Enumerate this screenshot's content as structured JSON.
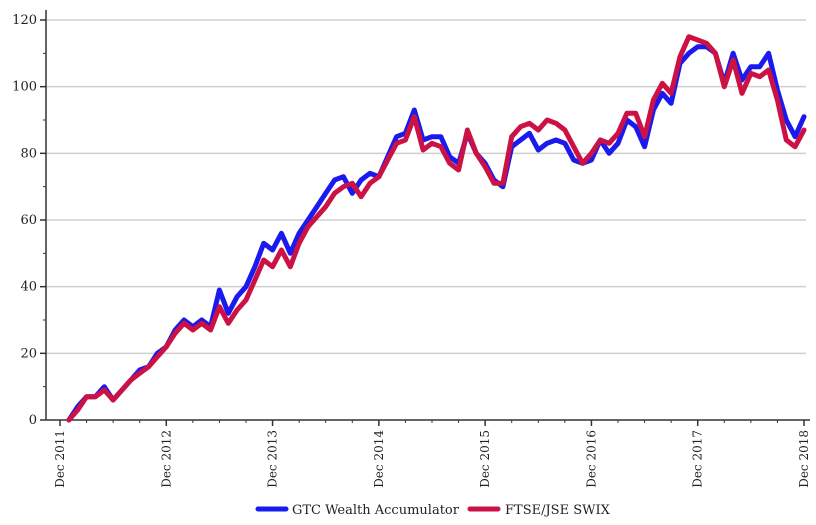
{
  "chart_data": {
    "type": "line",
    "title": "",
    "xlabel": "",
    "ylabel": "",
    "ylim": [
      0,
      120
    ],
    "xlim": [
      "2011-12",
      "2018-12"
    ],
    "y_ticks": [
      0,
      20,
      40,
      60,
      80,
      100,
      120
    ],
    "x_ticks": [
      "Dec 2011",
      "Dec 2012",
      "Dec 2013",
      "Dec 2014",
      "Dec 2015",
      "Dec 2016",
      "Dec 2017",
      "Dec 2018"
    ],
    "grid": "horizontal",
    "legend_position": "bottom-center",
    "x": [
      "2012-01",
      "2012-02",
      "2012-03",
      "2012-04",
      "2012-05",
      "2012-06",
      "2012-07",
      "2012-08",
      "2012-09",
      "2012-10",
      "2012-11",
      "2012-12",
      "2013-01",
      "2013-02",
      "2013-03",
      "2013-04",
      "2013-05",
      "2013-06",
      "2013-07",
      "2013-08",
      "2013-09",
      "2013-10",
      "2013-11",
      "2013-12",
      "2014-01",
      "2014-02",
      "2014-03",
      "2014-04",
      "2014-05",
      "2014-06",
      "2014-07",
      "2014-08",
      "2014-09",
      "2014-10",
      "2014-11",
      "2014-12",
      "2015-01",
      "2015-02",
      "2015-03",
      "2015-04",
      "2015-05",
      "2015-06",
      "2015-07",
      "2015-08",
      "2015-09",
      "2015-10",
      "2015-11",
      "2015-12",
      "2016-01",
      "2016-02",
      "2016-03",
      "2016-04",
      "2016-05",
      "2016-06",
      "2016-07",
      "2016-08",
      "2016-09",
      "2016-10",
      "2016-11",
      "2016-12",
      "2017-01",
      "2017-02",
      "2017-03",
      "2017-04",
      "2017-05",
      "2017-06",
      "2017-07",
      "2017-08",
      "2017-09",
      "2017-10",
      "2017-11",
      "2017-12",
      "2018-01",
      "2018-02",
      "2018-03",
      "2018-04",
      "2018-05",
      "2018-06",
      "2018-07",
      "2018-08",
      "2018-09",
      "2018-10",
      "2018-11",
      "2018-12"
    ],
    "series": [
      {
        "name": "GTC Wealth Accumulator",
        "color": "#1a1aee",
        "values": [
          0,
          4,
          7,
          7,
          10,
          6,
          9,
          12,
          15,
          16,
          20,
          22,
          27,
          30,
          28,
          30,
          28,
          39,
          32,
          37,
          40,
          46,
          53,
          51,
          56,
          50,
          56,
          60,
          64,
          68,
          72,
          73,
          68,
          72,
          74,
          73,
          79,
          85,
          86,
          93,
          84,
          85,
          85,
          79,
          77,
          86,
          80,
          77,
          72,
          70,
          82,
          84,
          86,
          81,
          83,
          84,
          83,
          78,
          77,
          78,
          84,
          80,
          83,
          90,
          88,
          82,
          93,
          98,
          95,
          107,
          110,
          112,
          112,
          110,
          101,
          110,
          102,
          106,
          106,
          110,
          99,
          90,
          85,
          91
        ]
      },
      {
        "name": "FTSE/JSE SWIX",
        "color": "#cc1144",
        "values": [
          0,
          3,
          7,
          7,
          9,
          6,
          9,
          12,
          14,
          16,
          19,
          22,
          26,
          29,
          27,
          29,
          27,
          34,
          29,
          33,
          36,
          42,
          48,
          46,
          51,
          46,
          53,
          58,
          61,
          64,
          68,
          70,
          71,
          67,
          71,
          73,
          78,
          83,
          84,
          91,
          81,
          83,
          82,
          77,
          75,
          87,
          80,
          76,
          71,
          71,
          85,
          88,
          89,
          87,
          90,
          89,
          87,
          82,
          77,
          80,
          84,
          83,
          86,
          92,
          92,
          85,
          96,
          101,
          98,
          109,
          115,
          114,
          113,
          110,
          100,
          108,
          98,
          104,
          103,
          105,
          96,
          84,
          82,
          87
        ]
      }
    ]
  }
}
